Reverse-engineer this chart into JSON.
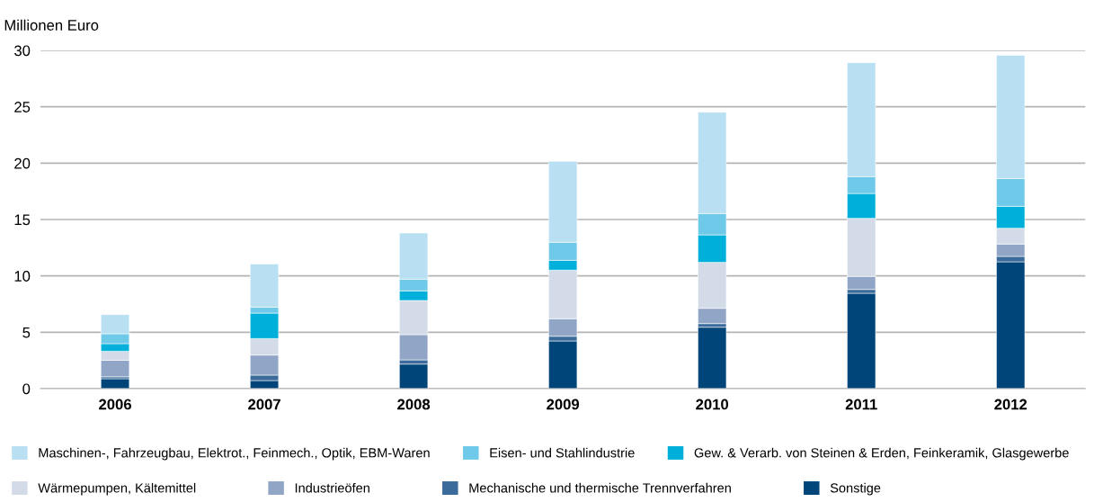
{
  "chart_data": {
    "type": "bar",
    "stacked": true,
    "ylabel": "Millionen Euro",
    "categories": [
      "2006",
      "2007",
      "2008",
      "2009",
      "2010",
      "2011",
      "2012"
    ],
    "ylim": [
      0,
      30
    ],
    "yticks": [
      0,
      5,
      10,
      15,
      20,
      25,
      30
    ],
    "grid": "y",
    "legend": "bottom",
    "series": [
      {
        "name": "Sonstige",
        "color": "#00457a",
        "values": [
          0.88,
          0.72,
          2.18,
          4.23,
          5.45,
          8.46,
          11.25
        ]
      },
      {
        "name": "Mechanische und thermische Trennverfahren",
        "color": "#3a6b9a",
        "values": [
          0.17,
          0.48,
          0.37,
          0.42,
          0.32,
          0.34,
          0.48
        ]
      },
      {
        "name": "Industrieöfen",
        "color": "#91a6c6",
        "values": [
          1.47,
          1.78,
          2.24,
          1.55,
          1.36,
          1.15,
          1.09
        ]
      },
      {
        "name": "Wärmepumpen, Kältemittel",
        "color": "#d4dbe8",
        "values": [
          0.8,
          1.46,
          3.03,
          4.31,
          4.07,
          5.16,
          1.41
        ]
      },
      {
        "name": "Gew. & Verarb. von Steinen & Erden, Feinkeramik, Glasgewerbe",
        "color": "#00b0da",
        "values": [
          0.67,
          2.26,
          0.85,
          0.87,
          2.44,
          2.2,
          1.94
        ]
      },
      {
        "name": "Eisen- und Stahlindustrie",
        "color": "#6fc9e9",
        "values": [
          0.88,
          0.53,
          1.04,
          1.6,
          1.89,
          1.49,
          2.47
        ]
      },
      {
        "name": "Maschinen-, Fahrzeugbau, Elektrot., Feinmech., Optik, EBM-Waren",
        "color": "#b8e0f2",
        "values": [
          1.7,
          3.83,
          4.09,
          7.18,
          8.99,
          10.11,
          10.93
        ]
      }
    ]
  }
}
